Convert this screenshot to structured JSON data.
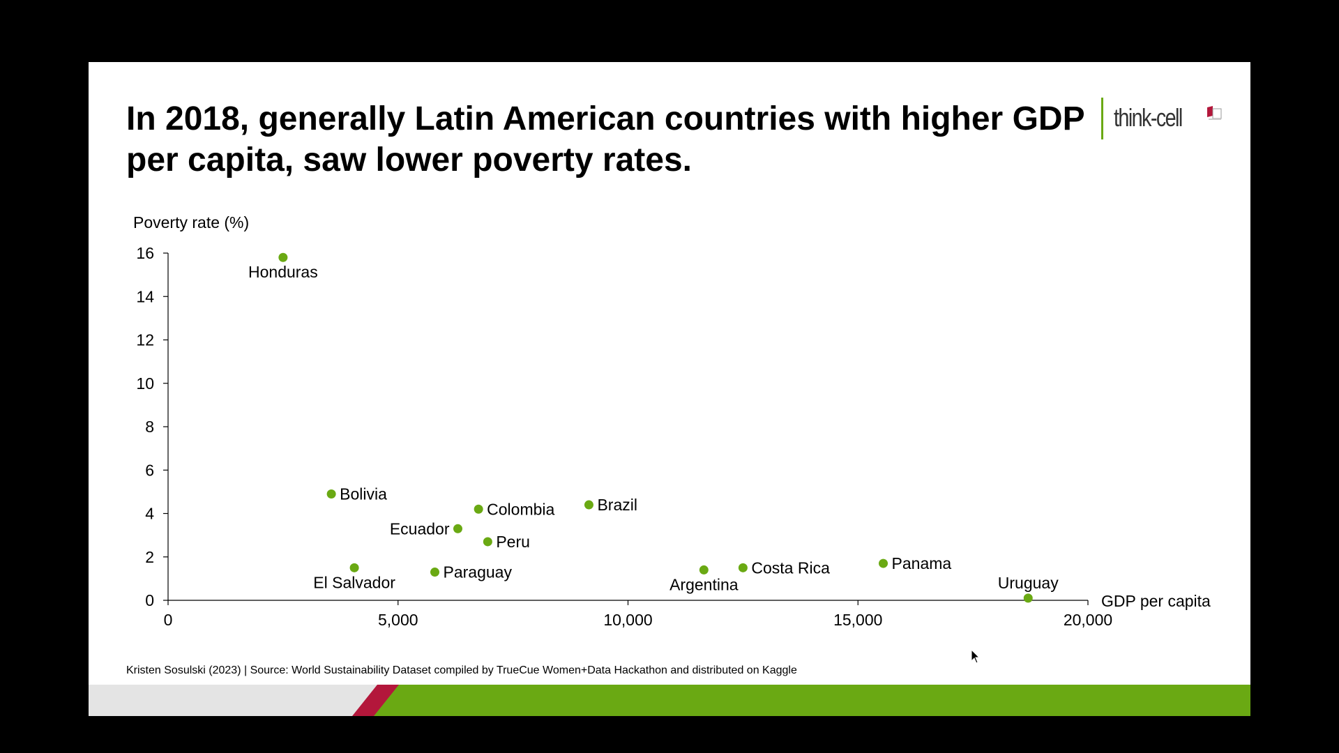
{
  "title": "In 2018, generally Latin American countries with higher GDP per capita, saw lower poverty rates.",
  "logo": {
    "text": "think-cell",
    "icon": "think-cell-logo-icon"
  },
  "footnote": "Kristen Sosulski (2023) | Source: World Sustainability Dataset compiled by TrueCue Women+Data Hackathon and distributed on Kaggle",
  "colors": {
    "point": "#6aa913",
    "footer_green": "#6aa913",
    "footer_red": "#b3173b",
    "footer_grey": "#e4e4e4"
  },
  "chart_data": {
    "type": "scatter",
    "xlabel": "GDP per capita",
    "ylabel": "Poverty rate (%)",
    "xlim": [
      0,
      20000
    ],
    "ylim": [
      0,
      16
    ],
    "xticks": [
      0,
      5000,
      10000,
      15000,
      20000
    ],
    "xtick_labels": [
      "0",
      "5,000",
      "10,000",
      "15,000",
      "20,000"
    ],
    "yticks": [
      0,
      2,
      4,
      6,
      8,
      10,
      12,
      14,
      16
    ],
    "ytick_labels": [
      "0",
      "2",
      "4",
      "6",
      "8",
      "10",
      "12",
      "14",
      "16"
    ],
    "grid": false,
    "points": [
      {
        "label": "Honduras",
        "x": 2500,
        "y": 15.8,
        "label_pos": "below"
      },
      {
        "label": "Bolivia",
        "x": 3550,
        "y": 4.9,
        "label_pos": "right"
      },
      {
        "label": "El Salvador",
        "x": 4050,
        "y": 1.5,
        "label_pos": "below"
      },
      {
        "label": "Paraguay",
        "x": 5800,
        "y": 1.3,
        "label_pos": "right"
      },
      {
        "label": "Ecuador",
        "x": 6300,
        "y": 3.3,
        "label_pos": "left"
      },
      {
        "label": "Colombia",
        "x": 6750,
        "y": 4.2,
        "label_pos": "right"
      },
      {
        "label": "Peru",
        "x": 6950,
        "y": 2.7,
        "label_pos": "right"
      },
      {
        "label": "Brazil",
        "x": 9150,
        "y": 4.4,
        "label_pos": "right"
      },
      {
        "label": "Argentina",
        "x": 11650,
        "y": 1.4,
        "label_pos": "below"
      },
      {
        "label": "Costa Rica",
        "x": 12500,
        "y": 1.5,
        "label_pos": "right"
      },
      {
        "label": "Panama",
        "x": 15550,
        "y": 1.7,
        "label_pos": "right"
      },
      {
        "label": "Uruguay",
        "x": 18700,
        "y": 0.1,
        "label_pos": "above"
      }
    ]
  }
}
